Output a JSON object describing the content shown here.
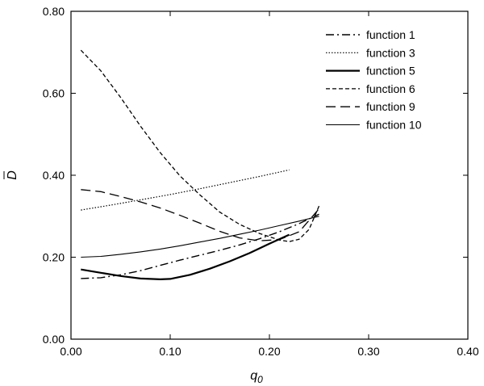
{
  "chart_data": {
    "type": "line",
    "xlabel": "q",
    "xlabel_sub": "0",
    "ylabel": "D",
    "xlim": [
      0.0,
      0.4
    ],
    "ylim": [
      0.0,
      0.8
    ],
    "xticks": [
      "0.00",
      "0.10",
      "0.20",
      "0.30",
      "0.40"
    ],
    "yticks": [
      "0.00",
      "0.20",
      "0.40",
      "0.60",
      "0.80"
    ],
    "xtick_values": [
      0.0,
      0.1,
      0.2,
      0.3,
      0.4
    ],
    "ytick_values": [
      0.0,
      0.2,
      0.4,
      0.6,
      0.8
    ],
    "grid": false,
    "legend_position": "top-right",
    "series": [
      {
        "name": "function 1",
        "dash": "10,4,2,4",
        "stroke_width": 1.4,
        "x": [
          0.01,
          0.03,
          0.05,
          0.07,
          0.09,
          0.11,
          0.13,
          0.15,
          0.17,
          0.19,
          0.21,
          0.23,
          0.25
        ],
        "y": [
          0.148,
          0.15,
          0.157,
          0.167,
          0.18,
          0.193,
          0.205,
          0.217,
          0.23,
          0.245,
          0.262,
          0.282,
          0.305
        ]
      },
      {
        "name": "function 3",
        "dash": "1.5,2",
        "stroke_width": 1.2,
        "x": [
          0.01,
          0.04,
          0.07,
          0.1,
          0.13,
          0.16,
          0.19,
          0.22
        ],
        "y": [
          0.315,
          0.327,
          0.34,
          0.353,
          0.367,
          0.382,
          0.397,
          0.413
        ]
      },
      {
        "name": "function 5",
        "dash": "",
        "stroke_width": 2.2,
        "x": [
          0.01,
          0.03,
          0.05,
          0.07,
          0.09,
          0.1,
          0.12,
          0.14,
          0.16,
          0.18,
          0.2,
          0.22
        ],
        "y": [
          0.17,
          0.162,
          0.154,
          0.148,
          0.146,
          0.147,
          0.157,
          0.172,
          0.19,
          0.21,
          0.233,
          0.255
        ]
      },
      {
        "name": "function 6",
        "dash": "5,3",
        "stroke_width": 1.3,
        "x": [
          0.01,
          0.03,
          0.05,
          0.07,
          0.09,
          0.11,
          0.13,
          0.15,
          0.17,
          0.19,
          0.21,
          0.22,
          0.23,
          0.24,
          0.25
        ],
        "y": [
          0.705,
          0.655,
          0.59,
          0.52,
          0.455,
          0.398,
          0.352,
          0.31,
          0.28,
          0.258,
          0.242,
          0.238,
          0.244,
          0.268,
          0.325
        ]
      },
      {
        "name": "function 9",
        "dash": "12,6",
        "stroke_width": 1.3,
        "x": [
          0.01,
          0.03,
          0.05,
          0.07,
          0.09,
          0.11,
          0.13,
          0.15,
          0.17,
          0.19,
          0.21,
          0.23,
          0.25
        ],
        "y": [
          0.365,
          0.36,
          0.348,
          0.335,
          0.32,
          0.302,
          0.283,
          0.263,
          0.247,
          0.24,
          0.243,
          0.262,
          0.318
        ]
      },
      {
        "name": "function 10",
        "dash": "",
        "stroke_width": 1.1,
        "x": [
          0.01,
          0.03,
          0.05,
          0.07,
          0.09,
          0.11,
          0.13,
          0.15,
          0.17,
          0.19,
          0.21,
          0.23,
          0.25
        ],
        "y": [
          0.2,
          0.202,
          0.207,
          0.213,
          0.22,
          0.228,
          0.237,
          0.246,
          0.256,
          0.266,
          0.277,
          0.288,
          0.3
        ]
      }
    ]
  }
}
